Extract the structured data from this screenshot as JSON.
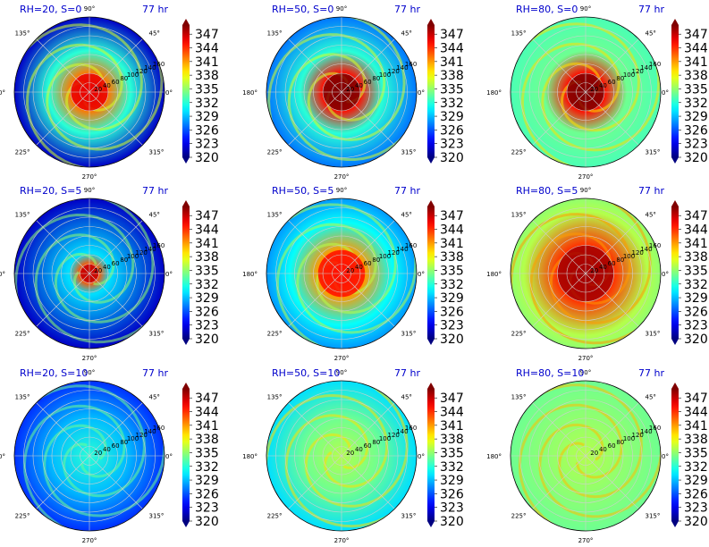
{
  "figure": {
    "colorbar_ticks": [
      320,
      323,
      326,
      329,
      332,
      335,
      338,
      341,
      344,
      347
    ],
    "colorbar_range": [
      320,
      349
    ],
    "colormap": "jet",
    "angle_ticks": [
      "0°",
      "45°",
      "90°",
      "135°",
      "180°",
      "225°",
      "270°",
      "315°"
    ],
    "radius_ticks": [
      "20",
      "40",
      "60",
      "80",
      "100",
      "120",
      "140",
      "160"
    ]
  },
  "chart_data": [
    {
      "type": "heatmap",
      "projection": "polar",
      "title": "RH=20, S=0",
      "time_label": "77 hr",
      "colorbar_range": [
        320,
        349
      ],
      "eye_radius": 40,
      "core_value": 346,
      "field_value": 332,
      "edge_value": 322
    },
    {
      "type": "heatmap",
      "projection": "polar",
      "title": "RH=50, S=0",
      "time_label": "77 hr",
      "colorbar_range": [
        320,
        349
      ],
      "eye_radius": 40,
      "core_value": 349,
      "field_value": 332,
      "edge_value": 327
    },
    {
      "type": "heatmap",
      "projection": "polar",
      "title": "RH=80, S=0",
      "time_label": "77 hr",
      "colorbar_range": [
        320,
        349
      ],
      "eye_radius": 40,
      "core_value": 349,
      "field_value": 334,
      "edge_value": 333
    },
    {
      "type": "heatmap",
      "projection": "polar",
      "title": "RH=20, S=5",
      "time_label": "77 hr",
      "colorbar_range": [
        320,
        349
      ],
      "eye_radius": 20,
      "core_value": 347,
      "field_value": 330,
      "edge_value": 322
    },
    {
      "type": "heatmap",
      "projection": "polar",
      "title": "RH=50, S=5",
      "time_label": "77 hr",
      "colorbar_range": [
        320,
        349
      ],
      "eye_radius": 50,
      "core_value": 345,
      "field_value": 331,
      "edge_value": 328
    },
    {
      "type": "heatmap",
      "projection": "polar",
      "title": "RH=80, S=5",
      "time_label": "77 hr",
      "colorbar_range": [
        320,
        349
      ],
      "eye_radius": 60,
      "core_value": 348,
      "field_value": 336,
      "edge_value": 335
    },
    {
      "type": "heatmap",
      "projection": "polar",
      "title": "RH=20, S=10",
      "time_label": "77 hr",
      "colorbar_range": [
        320,
        349
      ],
      "eye_radius": 0,
      "core_value": 332,
      "field_value": 329,
      "edge_value": 325
    },
    {
      "type": "heatmap",
      "projection": "polar",
      "title": "RH=50, S=10",
      "time_label": "77 hr",
      "colorbar_range": [
        320,
        349
      ],
      "eye_radius": 0,
      "core_value": 336,
      "field_value": 334,
      "edge_value": 330
    },
    {
      "type": "heatmap",
      "projection": "polar",
      "title": "RH=80, S=10",
      "time_label": "77 hr",
      "colorbar_range": [
        320,
        349
      ],
      "eye_radius": 0,
      "core_value": 336,
      "field_value": 335,
      "edge_value": 334
    }
  ]
}
